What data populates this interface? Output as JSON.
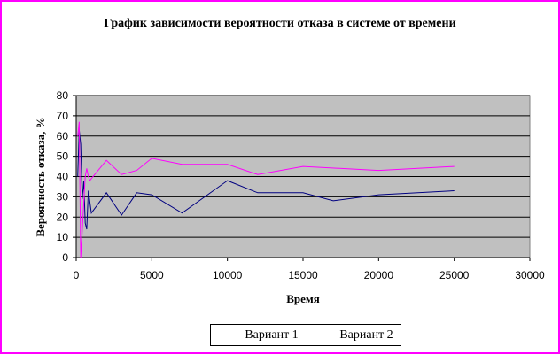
{
  "chart_data": {
    "type": "line",
    "title": "График зависимости вероятности отказа в системе от времени",
    "xlabel": "Время",
    "ylabel": "Вероятность отказа, %",
    "xlim": [
      0,
      30000
    ],
    "ylim": [
      0,
      80
    ],
    "xticks": [
      0,
      5000,
      10000,
      15000,
      20000,
      25000,
      30000
    ],
    "yticks": [
      0,
      10,
      20,
      30,
      40,
      50,
      60,
      70,
      80
    ],
    "grid": "horizontal",
    "plot_background": "#c0c0c0",
    "legend_position": "bottom",
    "series": [
      {
        "name": "Вариант 1",
        "color": "#000080",
        "points": [
          [
            100,
            40
          ],
          [
            200,
            63
          ],
          [
            300,
            56
          ],
          [
            400,
            29
          ],
          [
            500,
            38
          ],
          [
            600,
            17
          ],
          [
            700,
            14
          ],
          [
            800,
            33
          ],
          [
            1000,
            22
          ],
          [
            2000,
            32
          ],
          [
            3000,
            21
          ],
          [
            4000,
            32
          ],
          [
            5000,
            31
          ],
          [
            7000,
            22
          ],
          [
            10000,
            38
          ],
          [
            12000,
            32
          ],
          [
            15000,
            32
          ],
          [
            17000,
            28
          ],
          [
            20000,
            31
          ],
          [
            25000,
            33
          ]
        ]
      },
      {
        "name": "Вариант 2",
        "color": "#ff00ff",
        "points": [
          [
            100,
            60
          ],
          [
            200,
            67
          ],
          [
            300,
            0
          ],
          [
            400,
            13
          ],
          [
            500,
            27
          ],
          [
            600,
            40
          ],
          [
            700,
            44
          ],
          [
            800,
            40
          ],
          [
            900,
            38
          ],
          [
            1000,
            39
          ],
          [
            2000,
            48
          ],
          [
            3000,
            41
          ],
          [
            4000,
            43
          ],
          [
            5000,
            49
          ],
          [
            7000,
            46
          ],
          [
            10000,
            46
          ],
          [
            12000,
            41
          ],
          [
            15000,
            45
          ],
          [
            20000,
            43
          ],
          [
            25000,
            45
          ]
        ]
      }
    ]
  }
}
